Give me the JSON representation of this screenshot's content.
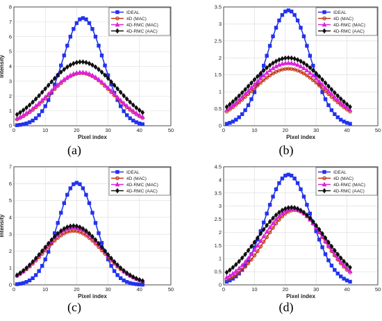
{
  "legend_entries": [
    "IDEAL",
    "4D (MAC)",
    "4D-RMC (MAC)",
    "4D-RMC (AAC)"
  ],
  "series_styles": [
    {
      "color": "#2233ee",
      "marker": "square"
    },
    {
      "color": "#c1330f",
      "marker": "circle"
    },
    {
      "color": "#dd22dd",
      "marker": "triangle"
    },
    {
      "color": "#111111",
      "marker": "diamond"
    }
  ],
  "chart_data": [
    {
      "type": "line",
      "panel_label": "(a)",
      "xlabel": "Pixel index",
      "ylabel": "Intensity",
      "xlim": [
        0,
        50
      ],
      "ylim": [
        0,
        8
      ],
      "xticks": [
        "0",
        "10",
        "20",
        "30",
        "40",
        "50"
      ],
      "yticks": [
        "0",
        "1",
        "2",
        "3",
        "4",
        "5",
        "6",
        "7",
        "8"
      ],
      "grid": true,
      "legend_position": "top-right",
      "series": [
        {
          "name": "IDEAL",
          "center": 22,
          "sigma": 6.5,
          "peak": 7.25,
          "base": 0,
          "x_start": 1,
          "x_end": 41
        },
        {
          "name": "4D (MAC)",
          "center": 21.5,
          "sigma": 10,
          "peak": 3.55,
          "base": 0,
          "x_start": 1,
          "x_end": 41
        },
        {
          "name": "4D-RMC (MAC)",
          "center": 21.5,
          "sigma": 10.3,
          "peak": 3.6,
          "base": 0,
          "x_start": 1,
          "x_end": 41
        },
        {
          "name": "4D-RMC (AAC)",
          "center": 21.5,
          "sigma": 11,
          "peak": 4.3,
          "base": 0,
          "x_start": 1,
          "x_end": 41
        }
      ]
    },
    {
      "type": "line",
      "panel_label": "(b)",
      "xlabel": "Pixel index",
      "ylabel": "",
      "xlim": [
        0,
        50
      ],
      "ylim": [
        0,
        3.5
      ],
      "xticks": [
        "0",
        "10",
        "20",
        "30",
        "40",
        "50"
      ],
      "yticks": [
        "0",
        "0.5",
        "1",
        "1.5",
        "2",
        "2.5",
        "3",
        "3.5"
      ],
      "grid": true,
      "legend_position": "top-right",
      "series": [
        {
          "name": "IDEAL",
          "center": 21,
          "sigma": 7,
          "peak": 3.4,
          "base": 0,
          "x_start": 1,
          "x_end": 41
        },
        {
          "name": "4D (MAC)",
          "center": 21,
          "sigma": 12,
          "peak": 1.68,
          "base": 0,
          "x_start": 1,
          "x_end": 41
        },
        {
          "name": "4D-RMC (MAC)",
          "center": 21,
          "sigma": 12,
          "peak": 1.85,
          "base": 0,
          "x_start": 1,
          "x_end": 41
        },
        {
          "name": "4D-RMC (AAC)",
          "center": 21,
          "sigma": 12.5,
          "peak": 2.0,
          "base": 0,
          "x_start": 1,
          "x_end": 41
        }
      ]
    },
    {
      "type": "line",
      "panel_label": "(c)",
      "xlabel": "Pixel index",
      "ylabel": "Intensity",
      "xlim": [
        0,
        50
      ],
      "ylim": [
        0,
        7
      ],
      "xticks": [
        "0",
        "10",
        "20",
        "30",
        "40",
        "50"
      ],
      "yticks": [
        "0",
        "1",
        "2",
        "3",
        "4",
        "5",
        "6",
        "7"
      ],
      "grid": true,
      "legend_position": "top-right",
      "series": [
        {
          "name": "IDEAL",
          "center": 20,
          "sigma": 6,
          "peak": 6.05,
          "base": 0,
          "x_start": 1,
          "x_end": 41
        },
        {
          "name": "4D (MAC)",
          "center": 19,
          "sigma": 9.5,
          "peak": 3.2,
          "base": 0,
          "x_start": 1,
          "x_end": 41
        },
        {
          "name": "4D-RMC (MAC)",
          "center": 19,
          "sigma": 9.5,
          "peak": 3.4,
          "base": 0,
          "x_start": 1,
          "x_end": 41
        },
        {
          "name": "4D-RMC (AAC)",
          "center": 19,
          "sigma": 9.5,
          "peak": 3.5,
          "base": 0,
          "x_start": 1,
          "x_end": 41
        }
      ]
    },
    {
      "type": "line",
      "panel_label": "(d)",
      "xlabel": "Pixel index",
      "ylabel": "",
      "xlim": [
        0,
        50
      ],
      "ylim": [
        0,
        4.5
      ],
      "xticks": [
        "0",
        "10",
        "20",
        "30",
        "40",
        "50"
      ],
      "yticks": [
        "0",
        "0.5",
        "1",
        "1.5",
        "2",
        "2.5",
        "3",
        "3.5",
        "4",
        "4.5"
      ],
      "grid": true,
      "legend_position": "top-right",
      "series": [
        {
          "name": "IDEAL",
          "center": 21,
          "sigma": 7.5,
          "peak": 4.2,
          "base": 0,
          "x_start": 1,
          "x_end": 41
        },
        {
          "name": "4D (MAC)",
          "center": 23,
          "sigma": 9.5,
          "peak": 2.85,
          "base": 0,
          "x_start": 1,
          "x_end": 41
        },
        {
          "name": "4D-RMC (MAC)",
          "center": 22.5,
          "sigma": 10,
          "peak": 2.9,
          "base": 0,
          "x_start": 1,
          "x_end": 41
        },
        {
          "name": "4D-RMC (AAC)",
          "center": 22,
          "sigma": 11,
          "peak": 2.95,
          "base": 0,
          "x_start": 1,
          "x_end": 41
        }
      ]
    }
  ]
}
